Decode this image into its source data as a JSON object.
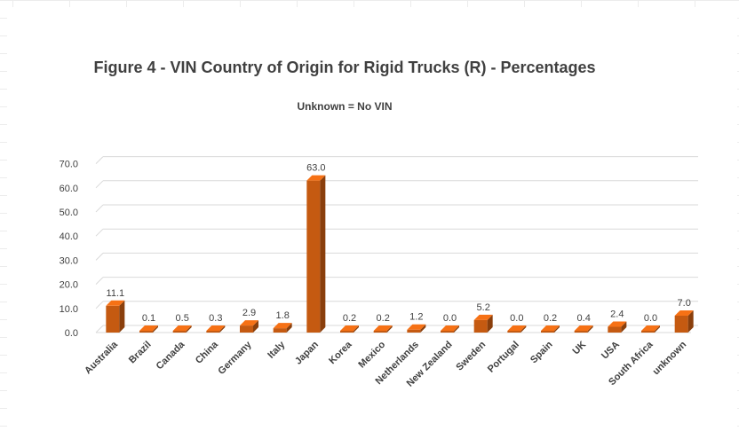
{
  "chart_data": {
    "type": "bar",
    "title": "Figure 4 - VIN Country of Origin for Rigid Trucks (R) - Percentages",
    "subtitle": "Unknown  =  No VIN",
    "categories": [
      "Australia",
      "Brazil",
      "Canada",
      "China",
      "Germany",
      "Italy",
      "Japan",
      "Korea",
      "Mexico",
      "Netherlands",
      "New Zealand",
      "Sweden",
      "Portugal",
      "Spain",
      "UK",
      "USA",
      "South Africa",
      "unknown"
    ],
    "values": [
      11.1,
      0.1,
      0.5,
      0.3,
      2.9,
      1.8,
      63.0,
      0.2,
      0.2,
      1.2,
      0.0,
      5.2,
      0.0,
      0.2,
      0.4,
      2.4,
      0.0,
      7.0
    ],
    "data_labels": [
      "11.1",
      "0.1",
      "0.5",
      "0.3",
      "2.9",
      "1.8",
      "63.0",
      "0.2",
      "0.2",
      "1.2",
      "0.0",
      "5.2",
      "0.0",
      "0.2",
      "0.4",
      "2.4",
      "0.0",
      "7.0"
    ],
    "yticks": [
      "0.0",
      "10.0",
      "20.0",
      "30.0",
      "40.0",
      "50.0",
      "60.0",
      "70.0"
    ],
    "ylim": [
      0,
      70
    ],
    "bar_color": "#c55a11",
    "grid": true,
    "legend": "none"
  }
}
